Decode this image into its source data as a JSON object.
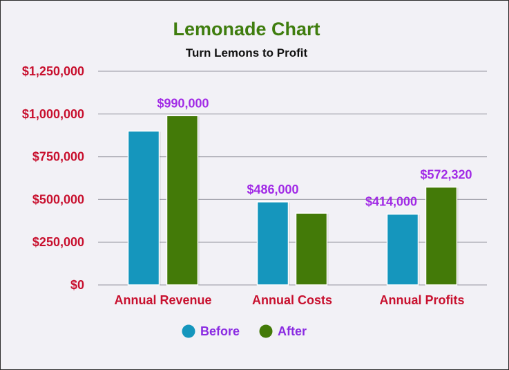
{
  "chart_data": {
    "type": "bar",
    "title": "Lemonade Chart",
    "subtitle": "Turn Lemons to Profit",
    "categories": [
      "Annual Revenue",
      "Annual Costs",
      "Annual Profits"
    ],
    "series": [
      {
        "name": "Before",
        "values": [
          900000,
          486000,
          414000
        ],
        "color": "#1596bd",
        "labels": [
          null,
          "$486,000",
          "$414,000"
        ]
      },
      {
        "name": "After",
        "values": [
          990000,
          420000,
          572320
        ],
        "color": "#437a08",
        "labels": [
          "$990,000",
          null,
          "$572,320"
        ]
      }
    ],
    "ylim": [
      0,
      1250000
    ],
    "yticks": [
      0,
      250000,
      500000,
      750000,
      1000000,
      1250000
    ],
    "ytick_labels": [
      "$0",
      "$250,000",
      "$500,000",
      "$750,000",
      "$1,000,000",
      "$1,250,000"
    ],
    "grid": true,
    "legend": "bottom-center"
  },
  "colors": {
    "title": "#3f7d0e",
    "axis_text": "#c8102e",
    "data_label": "#a12ae6",
    "legend_text": "#8a2be2",
    "grid": "#a7a7b0",
    "background": "#f2f1f6"
  }
}
